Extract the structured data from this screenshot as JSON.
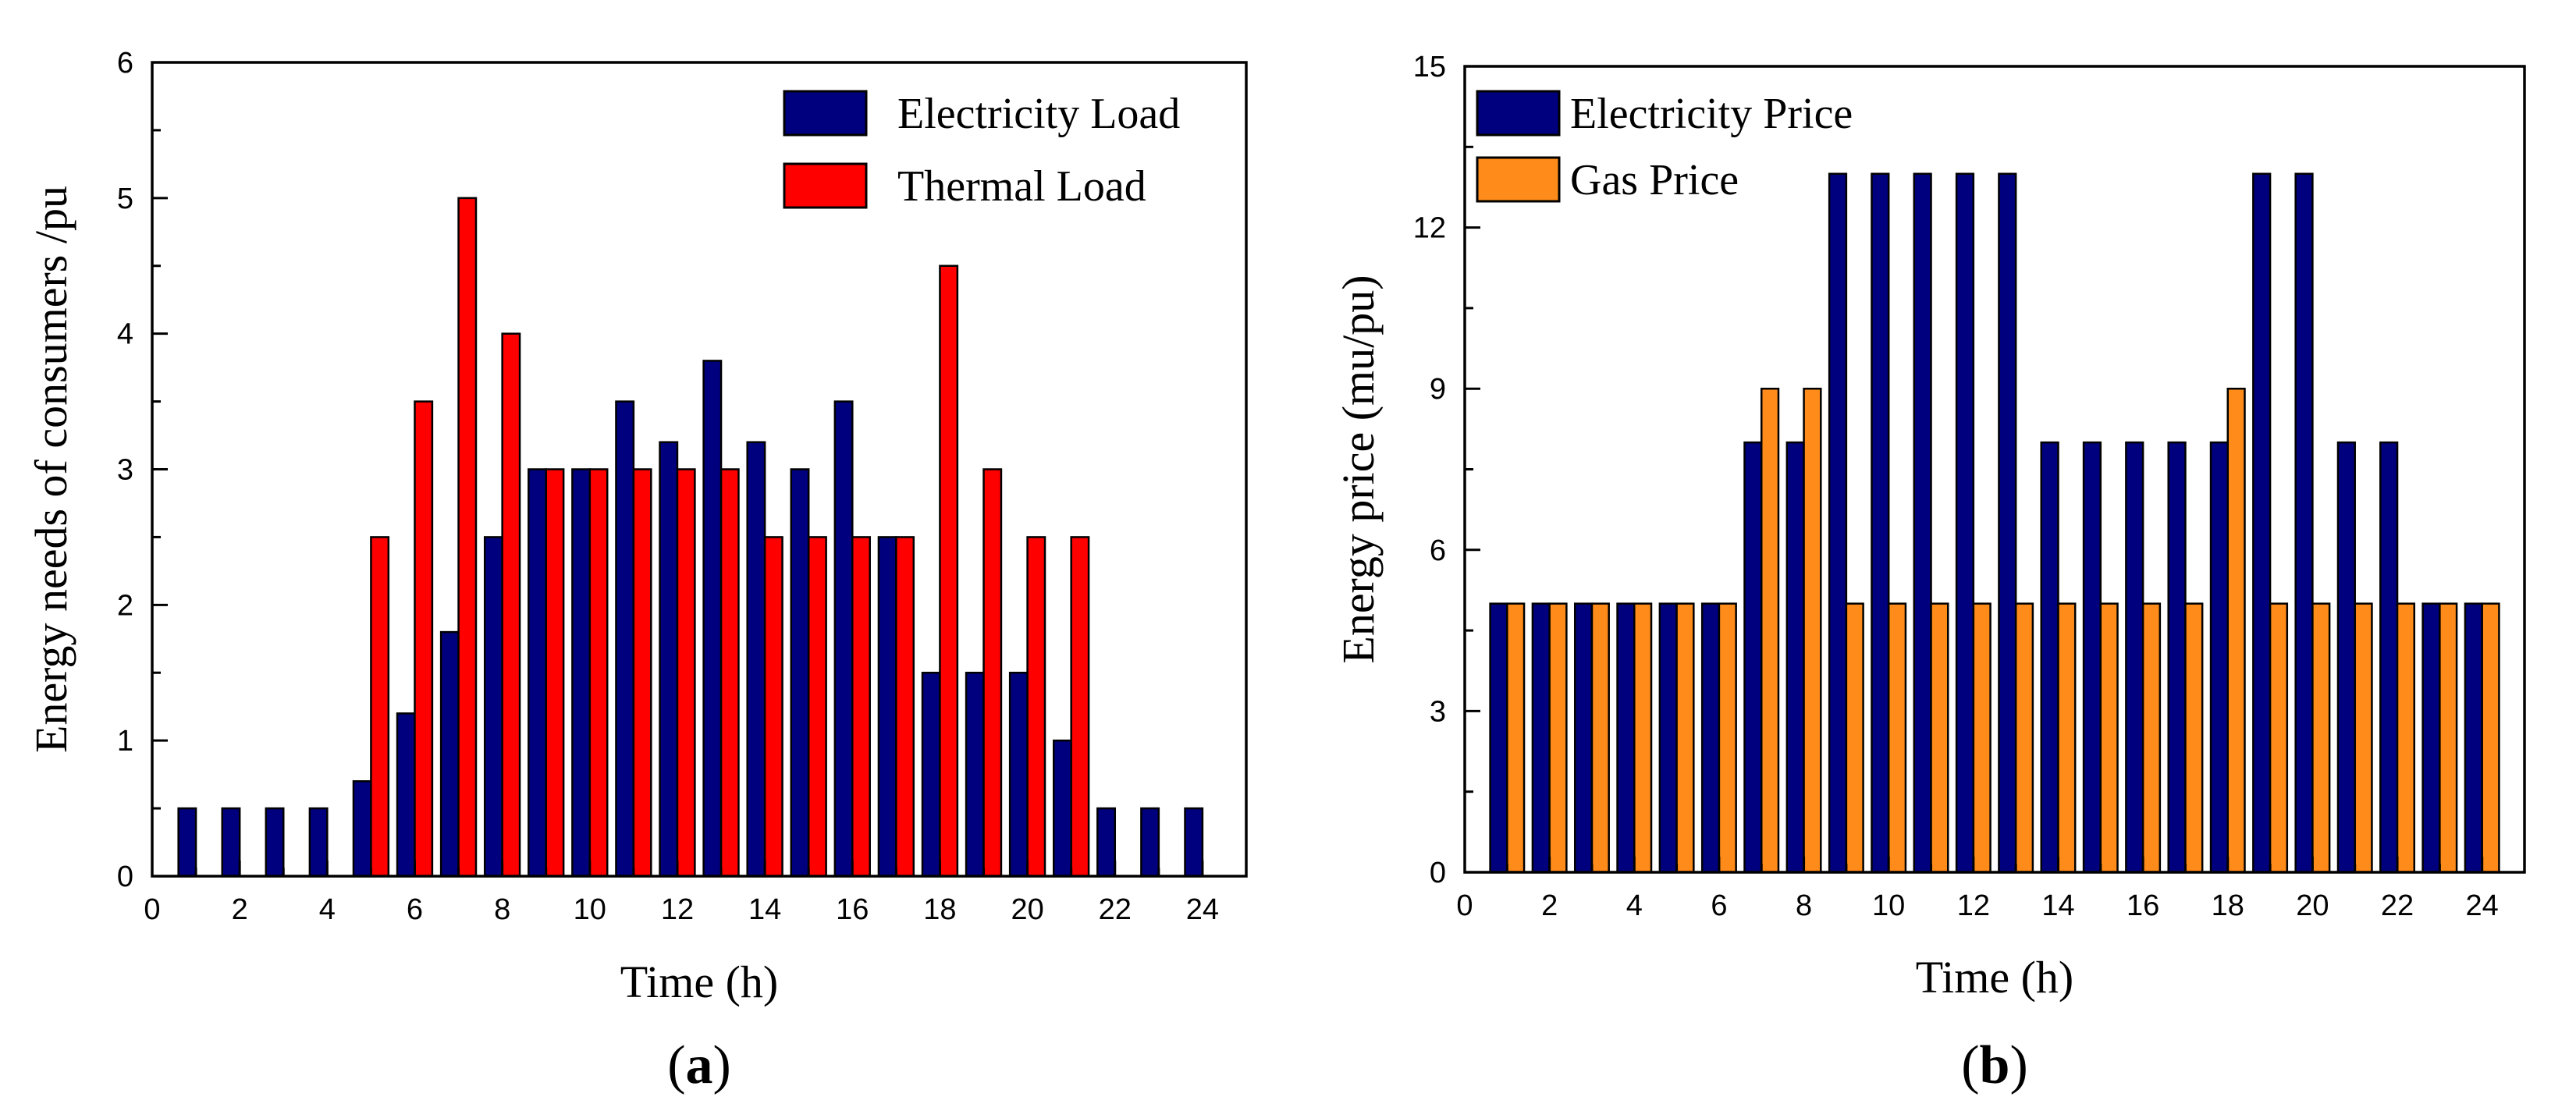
{
  "chart_data": [
    {
      "panel": "(a)",
      "panel_letter": "a",
      "type": "bar",
      "xlabel": "Time (h)",
      "ylabel": "Energy needs of consumers /pu",
      "xlim": [
        0,
        25
      ],
      "ylim": [
        0,
        6
      ],
      "xticks": [
        0,
        2,
        4,
        6,
        8,
        10,
        12,
        14,
        16,
        18,
        20,
        22,
        24
      ],
      "yticks": [
        0,
        1,
        2,
        3,
        4,
        5,
        6
      ],
      "legend_position": "top-right",
      "categories": [
        1,
        2,
        3,
        4,
        5,
        6,
        7,
        8,
        9,
        10,
        11,
        12,
        13,
        14,
        15,
        16,
        17,
        18,
        19,
        20,
        21,
        22,
        23,
        24
      ],
      "series": [
        {
          "name": "Electricity Load",
          "color": "#00007F",
          "values": [
            0.5,
            0.5,
            0.5,
            0.5,
            0.7,
            1.2,
            1.8,
            2.5,
            3.0,
            3.0,
            3.5,
            3.2,
            3.8,
            3.2,
            3.0,
            3.5,
            2.5,
            1.5,
            1.5,
            1.5,
            1.0,
            0.5,
            0.5,
            0.5
          ]
        },
        {
          "name": "Thermal Load",
          "color": "#FF0000",
          "values": [
            0,
            0,
            0,
            0,
            2.5,
            3.5,
            5.0,
            4.0,
            3.0,
            3.0,
            3.0,
            3.0,
            3.0,
            2.5,
            2.5,
            2.5,
            2.5,
            4.5,
            3.0,
            2.5,
            2.5,
            0,
            0,
            0
          ]
        }
      ]
    },
    {
      "panel": "(b)",
      "panel_letter": "b",
      "type": "bar",
      "xlabel": "Time (h)",
      "ylabel": "Energy price (mu/pu)",
      "xlim": [
        0,
        25
      ],
      "ylim": [
        0,
        15
      ],
      "xticks": [
        0,
        2,
        4,
        6,
        8,
        10,
        12,
        14,
        16,
        18,
        20,
        22,
        24
      ],
      "yticks": [
        0,
        3,
        6,
        9,
        12,
        15
      ],
      "legend_position": "top-left",
      "categories": [
        1,
        2,
        3,
        4,
        5,
        6,
        7,
        8,
        9,
        10,
        11,
        12,
        13,
        14,
        15,
        16,
        17,
        18,
        19,
        20,
        21,
        22,
        23,
        24
      ],
      "series": [
        {
          "name": "Electricity Price",
          "color": "#00007F",
          "values": [
            5,
            5,
            5,
            5,
            5,
            5,
            8,
            8,
            13,
            13,
            13,
            13,
            13,
            8,
            8,
            8,
            8,
            8,
            13,
            13,
            8,
            8,
            5,
            5
          ]
        },
        {
          "name": "Gas Price",
          "color": "#FF8C1A",
          "values": [
            5,
            5,
            5,
            5,
            5,
            5,
            9,
            9,
            5,
            5,
            5,
            5,
            5,
            5,
            5,
            5,
            5,
            9,
            5,
            5,
            5,
            5,
            5,
            5
          ]
        }
      ]
    }
  ]
}
